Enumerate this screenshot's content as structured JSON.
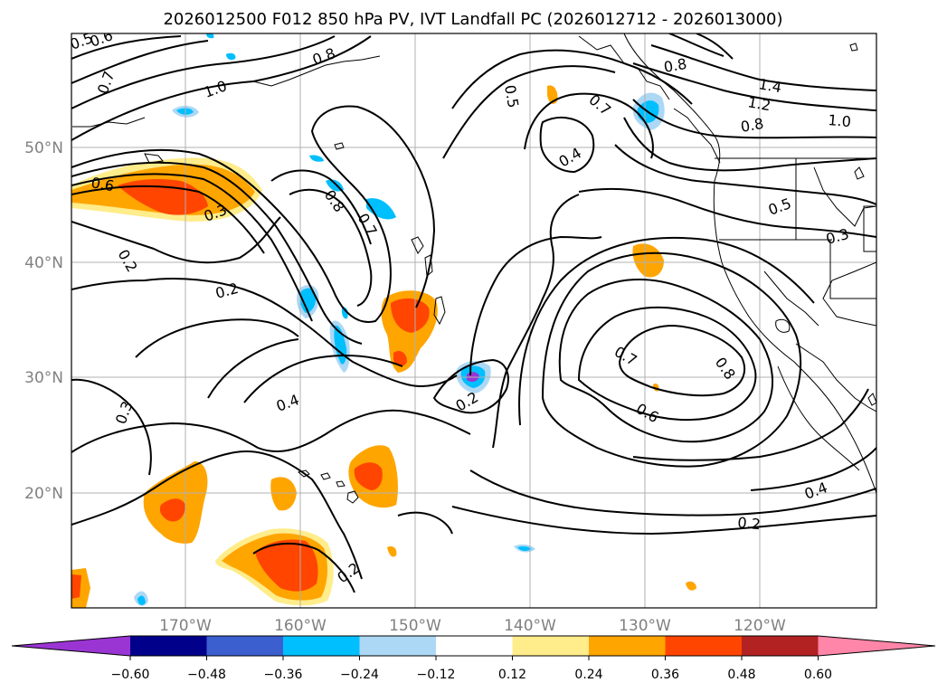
{
  "title": "2026012500 F012 850 hPa PV, IVT Landfall PC (2026012712 - 2026013000)",
  "lon_labels": [
    "170°W",
    "160°W",
    "150°W",
    "140°W",
    "130°W",
    "120°W"
  ],
  "lat_labels": [
    "50°N",
    "40°N",
    "30°N",
    "20°N"
  ],
  "colorbar": {
    "tick_labels": [
      "−0.60",
      "−0.48",
      "−0.36",
      "−0.24",
      "−0.12",
      "0.12",
      "0.24",
      "0.36",
      "0.48",
      "0.60"
    ],
    "colors": [
      "#9a35d4",
      "#00008b",
      "#3b5fcf",
      "#00bfff",
      "#add8f5",
      "#ffffff",
      "#ffec8b",
      "#ffa500",
      "#ff4500",
      "#b22222",
      "#ff86a8"
    ]
  },
  "contour_labels": [
    "0.5",
    "0.6",
    "0.7",
    "1.0",
    "0.8",
    "0.5",
    "0.7",
    "0.8",
    "1.4",
    "1.2",
    "1.0",
    "0.8",
    "0.4",
    "0.6",
    "0.8",
    "0.7",
    "0.3",
    "0.5",
    "0.3",
    "0.2",
    "0.2",
    "0.3",
    "0.4",
    "0.2",
    "0.7",
    "0.8",
    "0.6",
    "0.4",
    "0.2",
    "0.2"
  ]
}
